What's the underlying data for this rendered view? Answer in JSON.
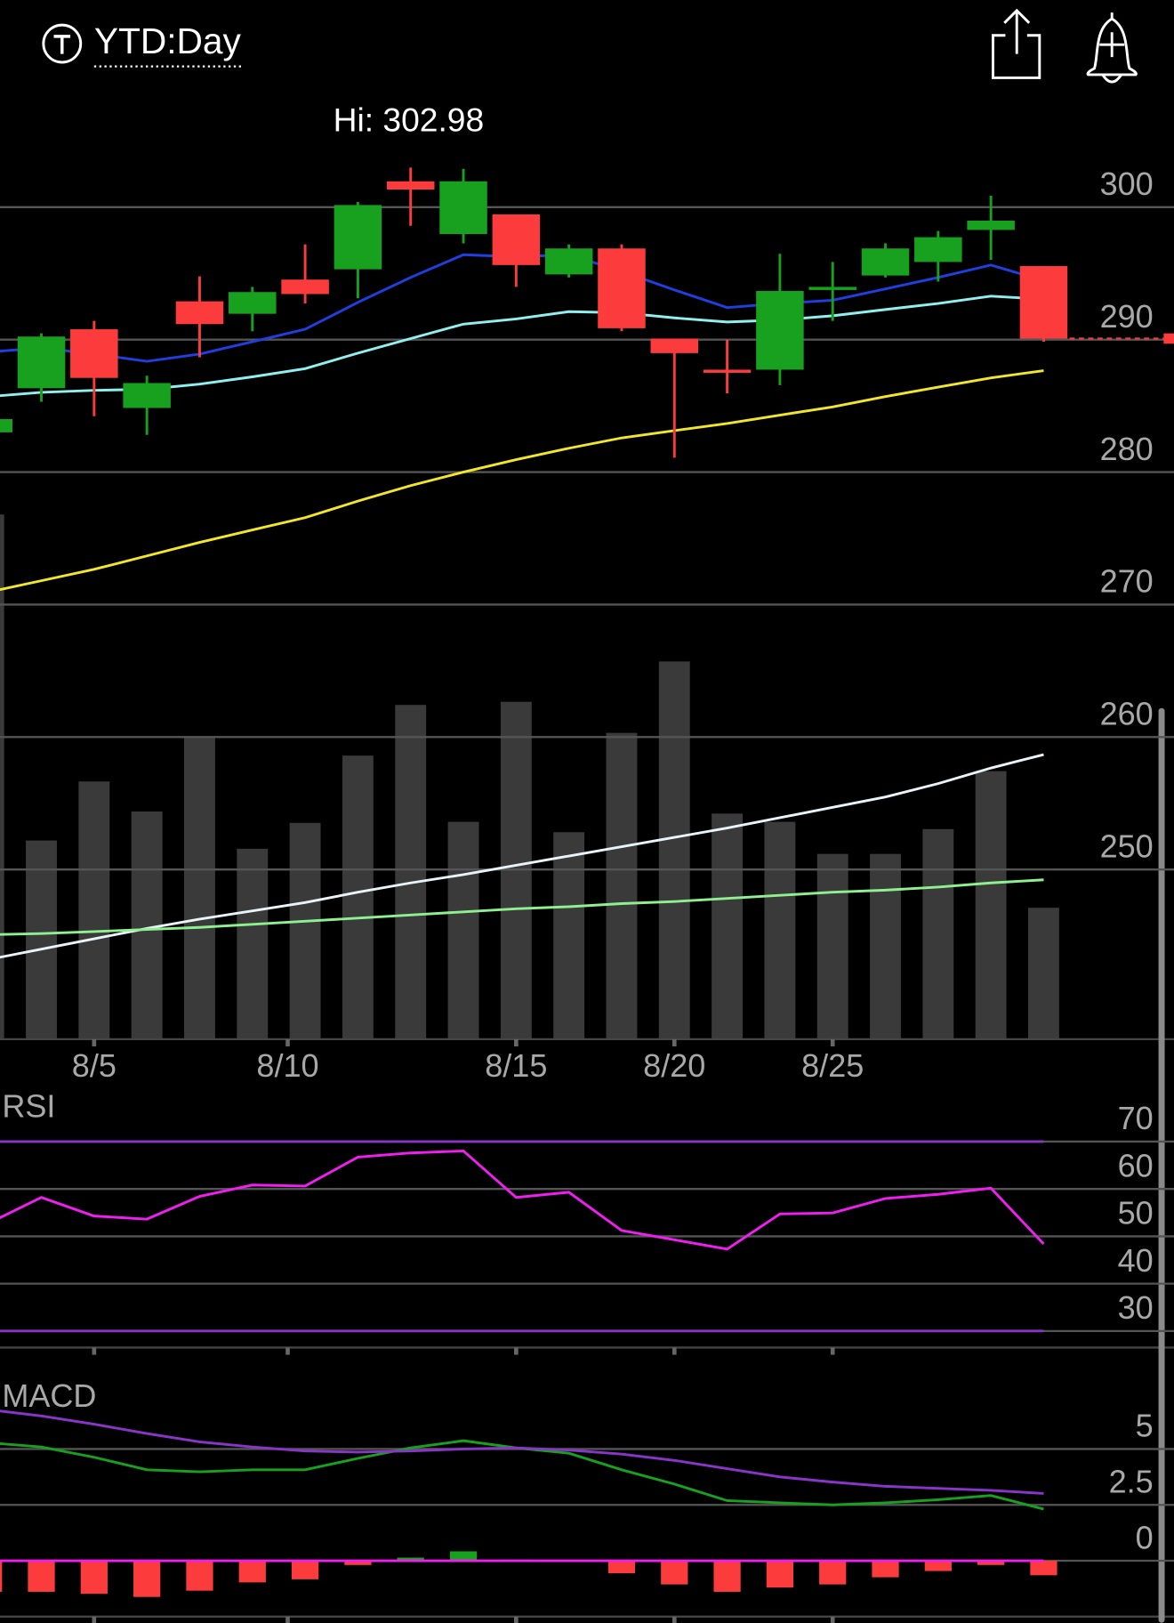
{
  "header": {
    "title": "YTD:Day"
  },
  "chart_data": [
    {
      "type": "candlestick",
      "annotation": "Hi: 302.98",
      "x": [
        0,
        1,
        2,
        3,
        4,
        5,
        6,
        7,
        8,
        9,
        10,
        11,
        12,
        13,
        14,
        15,
        16,
        17,
        18,
        19,
        20
      ],
      "xlim": [
        -0.5,
        22.5
      ],
      "xticks": [
        {
          "value": 2,
          "label": "8/5"
        },
        {
          "value": 5.67,
          "label": "8/10"
        },
        {
          "value": 10,
          "label": "8/15"
        },
        {
          "value": 13,
          "label": "8/20"
        },
        {
          "value": 16,
          "label": "8/25"
        }
      ],
      "open": [
        283.0,
        286.33,
        290.78,
        284.84,
        292.89,
        291.95,
        294.53,
        295.31,
        301.95,
        297.97,
        299.45,
        294.92,
        296.88,
        290.08,
        287.73,
        287.73,
        293.83,
        294.84,
        295.86,
        298.28,
        295.55
      ],
      "high": [
        284.0,
        290.47,
        291.41,
        287.27,
        294.77,
        293.98,
        297.19,
        300.39,
        302.98,
        302.89,
        299.45,
        297.19,
        297.19,
        290.08,
        290.0,
        296.48,
        295.86,
        297.27,
        298.2,
        300.86,
        295.55
      ],
      "low": [
        283.0,
        285.31,
        284.22,
        282.81,
        288.67,
        290.63,
        292.73,
        293.13,
        298.59,
        297.27,
        293.98,
        294.69,
        290.63,
        281.09,
        285.94,
        286.56,
        291.41,
        294.69,
        294.38,
        296.02,
        289.84
      ],
      "close": [
        284.0,
        290.23,
        287.11,
        286.72,
        291.17,
        293.59,
        293.44,
        300.16,
        301.33,
        301.95,
        295.63,
        296.88,
        290.86,
        288.98,
        287.58,
        293.67,
        293.98,
        296.88,
        297.73,
        298.98,
        290.08
      ],
      "up_color": "#18a11f",
      "down_color": "#fc3c3c",
      "series": [
        {
          "color": "#1f3fe0",
          "values": [
            289.06,
            289.38,
            288.91,
            288.36,
            288.91,
            289.84,
            290.78,
            292.81,
            294.69,
            296.41,
            296.25,
            296.41,
            295.16,
            293.75,
            292.42,
            292.73,
            292.97,
            293.83,
            294.69,
            295.63,
            294.45
          ]
        },
        {
          "color": "#8ff0f0",
          "values": [
            285.7,
            286.02,
            286.17,
            286.25,
            286.64,
            287.19,
            287.81,
            288.98,
            290.08,
            291.17,
            291.56,
            292.11,
            292.03,
            291.64,
            291.33,
            291.48,
            291.8,
            292.27,
            292.73,
            293.28,
            293.05
          ]
        },
        {
          "color": "#f2e629",
          "values": [
            270.94,
            271.8,
            272.66,
            273.67,
            274.69,
            275.63,
            276.56,
            277.81,
            278.98,
            280.0,
            280.94,
            281.8,
            282.58,
            283.13,
            283.67,
            284.3,
            284.92,
            285.7,
            286.41,
            287.11,
            287.66
          ]
        }
      ],
      "ylim": [
        237.19,
        307.03
      ],
      "yticks": [
        300,
        290,
        280,
        270,
        260,
        250
      ],
      "grid": true
    },
    {
      "type": "bar",
      "color": "#3a3a3a",
      "values": [
        507,
        192,
        249,
        220,
        292,
        184,
        209,
        274,
        323,
        210,
        326,
        200,
        296,
        365,
        218,
        210,
        179,
        179,
        203,
        259,
        127
      ],
      "series": [
        {
          "color": "#e8f4f8",
          "values": [
            77,
            87,
            97,
            107,
            116,
            124,
            132,
            142,
            151,
            159,
            168,
            177,
            186,
            195,
            204,
            214,
            224,
            234,
            247,
            262,
            275
          ]
        },
        {
          "color": "#8ef08e",
          "values": [
            101,
            102,
            104,
            106,
            108,
            111,
            114,
            117,
            120,
            123,
            126,
            128,
            131,
            133,
            136,
            139,
            142,
            144,
            147,
            151,
            154
          ]
        }
      ],
      "ylim": [
        0,
        507
      ]
    },
    {
      "type": "line",
      "title": "RSI",
      "series": [
        {
          "color": "#f01ef0",
          "values": [
            52.75,
            58.21,
            54.28,
            53.62,
            58.43,
            60.83,
            60.61,
            66.72,
            67.6,
            68.03,
            58.21,
            59.3,
            51.22,
            49.26,
            47.29,
            54.72,
            54.93,
            57.99,
            58.86,
            60.17,
            48.38
          ]
        }
      ],
      "levels": [
        70,
        30
      ],
      "level_color": "#8a35c9",
      "ylim": [
        26.51,
        79.39
      ],
      "yticks": [
        70,
        60,
        50,
        40,
        30
      ],
      "grid": true
    },
    {
      "type": "macd",
      "title": "MACD",
      "histogram": [
        -1.39,
        -1.39,
        -1.48,
        -1.62,
        -1.34,
        -0.97,
        -0.83,
        -0.19,
        0.14,
        0.42,
        0.05,
        -0.05,
        -0.56,
        -1.06,
        -1.39,
        -1.2,
        -1.06,
        -0.74,
        -0.46,
        -0.19,
        -0.65
      ],
      "up_color": "#18a11f",
      "down_color": "#fc3c3c",
      "series": [
        {
          "color": "#18a11f",
          "values": [
            5.28,
            5.09,
            4.63,
            4.07,
            3.98,
            4.07,
            4.07,
            4.58,
            5.05,
            5.37,
            5.05,
            4.81,
            4.07,
            3.43,
            2.69,
            2.59,
            2.5,
            2.59,
            2.73,
            2.92,
            2.31
          ]
        },
        {
          "color": "#8a35c9",
          "values": [
            6.76,
            6.48,
            6.11,
            5.69,
            5.32,
            5.09,
            4.91,
            4.86,
            4.91,
            5.0,
            5.05,
            4.95,
            4.77,
            4.49,
            4.12,
            3.75,
            3.52,
            3.33,
            3.24,
            3.15,
            3.01
          ]
        }
      ],
      "zero_color": "#f01ef0",
      "ylim": [
        -2.5,
        7.78
      ],
      "yticks": [
        5,
        2.5,
        0
      ],
      "grid": true
    }
  ]
}
